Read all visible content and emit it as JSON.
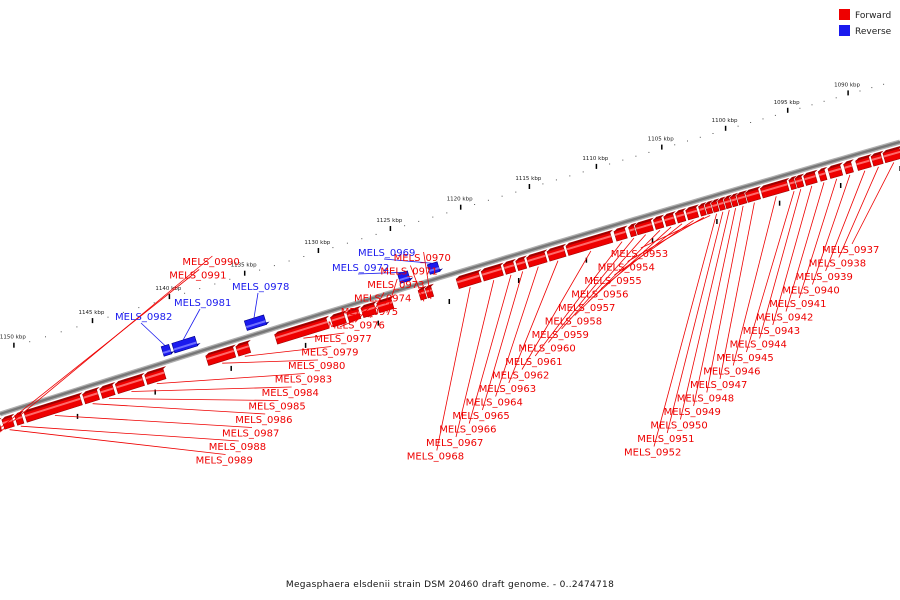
{
  "colors": {
    "forward": "#ee0000",
    "forward_light": "#ff6a6a",
    "forward_dark": "#a00000",
    "reverse": "#1a1aee",
    "reverse_light": "#6f6fff",
    "reverse_dark": "#00008a",
    "backbone": "#777777"
  },
  "legend": [
    {
      "label": "Forward",
      "color_key": "forward"
    },
    {
      "label": "Reverse",
      "color_key": "reverse"
    }
  ],
  "caption": "Megasphaera elsdenii strain DSM 20460 draft genome. - 0..2474718",
  "scale": {
    "start_kbp": 1087,
    "end_kbp": 1152,
    "labels": [
      "1090 kbp",
      "1095 kbp",
      "1100 kbp",
      "1105 kbp",
      "1110 kbp",
      "1115 kbp",
      "1120 kbp",
      "1125 kbp",
      "1130 kbp",
      "1135 kbp",
      "1140 kbp",
      "1145 kbp",
      "1150 kbp"
    ]
  },
  "genes": [
    {
      "name": "MELS_0937",
      "strand": "forward",
      "start_kbp": 1087.2,
      "end_kbp": 1088.6
    },
    {
      "name": "MELS_0938",
      "strand": "forward",
      "start_kbp": 1088.8,
      "end_kbp": 1089.6
    },
    {
      "name": "MELS_0939",
      "strand": "forward",
      "start_kbp": 1089.8,
      "end_kbp": 1090.9
    },
    {
      "name": "MELS_0940",
      "strand": "forward",
      "start_kbp": 1091.3,
      "end_kbp": 1091.9
    },
    {
      "name": "MELS_0941",
      "strand": "forward",
      "start_kbp": 1092.2,
      "end_kbp": 1093.2
    },
    {
      "name": "MELS_0942",
      "strand": "forward",
      "start_kbp": 1093.5,
      "end_kbp": 1094.0
    },
    {
      "name": "MELS_0943",
      "strand": "forward",
      "start_kbp": 1094.3,
      "end_kbp": 1095.2
    },
    {
      "name": "MELS_0944",
      "strand": "forward",
      "start_kbp": 1095.4,
      "end_kbp": 1095.9
    },
    {
      "name": "MELS_0945",
      "strand": "forward",
      "start_kbp": 1096.0,
      "end_kbp": 1096.4
    },
    {
      "name": "MELS_0946",
      "strand": "forward",
      "start_kbp": 1096.6,
      "end_kbp": 1098.7
    },
    {
      "name": "MELS_0947",
      "strand": "forward",
      "start_kbp": 1098.9,
      "end_kbp": 1099.9
    },
    {
      "name": "MELS_0948",
      "strand": "forward",
      "start_kbp": 1100.0,
      "end_kbp": 1100.6
    },
    {
      "name": "MELS_0949",
      "strand": "forward",
      "start_kbp": 1100.7,
      "end_kbp": 1101.1
    },
    {
      "name": "MELS_0950",
      "strand": "forward",
      "start_kbp": 1101.2,
      "end_kbp": 1101.6
    },
    {
      "name": "MELS_0951",
      "strand": "forward",
      "start_kbp": 1101.7,
      "end_kbp": 1102.1
    },
    {
      "name": "MELS_0952",
      "strand": "forward",
      "start_kbp": 1102.2,
      "end_kbp": 1102.6
    },
    {
      "name": "MELS_0953",
      "strand": "forward",
      "start_kbp": 1102.7,
      "end_kbp": 1103.1
    },
    {
      "name": "MELS_0954",
      "strand": "forward",
      "start_kbp": 1103.2,
      "end_kbp": 1103.6
    },
    {
      "name": "MELS_0955",
      "strand": "forward",
      "start_kbp": 1103.8,
      "end_kbp": 1104.6
    },
    {
      "name": "MELS_0956",
      "strand": "forward",
      "start_kbp": 1104.8,
      "end_kbp": 1105.4
    },
    {
      "name": "MELS_0957",
      "strand": "forward",
      "start_kbp": 1105.6,
      "end_kbp": 1106.3
    },
    {
      "name": "MELS_0958",
      "strand": "forward",
      "start_kbp": 1106.5,
      "end_kbp": 1107.1
    },
    {
      "name": "MELS_0959",
      "strand": "forward",
      "start_kbp": 1107.3,
      "end_kbp": 1108.5
    },
    {
      "name": "MELS_0960",
      "strand": "forward",
      "start_kbp": 1108.6,
      "end_kbp": 1109.0
    },
    {
      "name": "MELS_0961",
      "strand": "forward",
      "start_kbp": 1109.3,
      "end_kbp": 1110.1
    },
    {
      "name": "MELS_0962",
      "strand": "forward",
      "start_kbp": 1110.4,
      "end_kbp": 1113.7
    },
    {
      "name": "MELS_0963",
      "strand": "forward",
      "start_kbp": 1113.9,
      "end_kbp": 1115.1
    },
    {
      "name": "MELS_0964",
      "strand": "forward",
      "start_kbp": 1115.3,
      "end_kbp": 1116.6
    },
    {
      "name": "MELS_0965",
      "strand": "forward",
      "start_kbp": 1116.8,
      "end_kbp": 1117.4
    },
    {
      "name": "MELS_0966",
      "strand": "forward",
      "start_kbp": 1117.6,
      "end_kbp": 1118.3
    },
    {
      "name": "MELS_0967",
      "strand": "forward",
      "start_kbp": 1118.5,
      "end_kbp": 1119.9
    },
    {
      "name": "MELS_0968",
      "strand": "forward",
      "start_kbp": 1120.1,
      "end_kbp": 1121.7
    },
    {
      "name": "MELS_0969",
      "strand": "reverse",
      "start_kbp": 1122.6,
      "end_kbp": 1123.3
    },
    {
      "name": "MELS_0970",
      "strand": "forward",
      "start_kbp": 1123.5,
      "end_kbp": 1123.9
    },
    {
      "name": "MELS_0971",
      "strand": "forward",
      "start_kbp": 1124.0,
      "end_kbp": 1124.4
    },
    {
      "name": "MELS_0972",
      "strand": "reverse",
      "start_kbp": 1124.7,
      "end_kbp": 1125.4
    },
    {
      "name": "MELS_0973",
      "strand": "forward",
      "start_kbp": 1126.3,
      "end_kbp": 1127.3
    },
    {
      "name": "MELS_0974",
      "strand": "forward",
      "start_kbp": 1127.5,
      "end_kbp": 1128.4
    },
    {
      "name": "MELS_0975",
      "strand": "forward",
      "start_kbp": 1128.6,
      "end_kbp": 1129.4
    },
    {
      "name": "MELS_0976",
      "strand": "forward",
      "start_kbp": 1129.6,
      "end_kbp": 1130.5
    },
    {
      "name": "MELS_0977",
      "strand": "forward",
      "start_kbp": 1130.8,
      "end_kbp": 1134.3
    },
    {
      "name": "MELS_0978",
      "strand": "reverse",
      "start_kbp": 1134.6,
      "end_kbp": 1135.9
    },
    {
      "name": "MELS_0979",
      "strand": "forward",
      "start_kbp": 1136.1,
      "end_kbp": 1136.9
    },
    {
      "name": "MELS_0980",
      "strand": "forward",
      "start_kbp": 1137.1,
      "end_kbp": 1138.9
    },
    {
      "name": "MELS_0981",
      "strand": "reverse",
      "start_kbp": 1139.2,
      "end_kbp": 1140.7
    },
    {
      "name": "MELS_0982",
      "strand": "reverse",
      "start_kbp": 1140.9,
      "end_kbp": 1141.4
    },
    {
      "name": "MELS_0983",
      "strand": "forward",
      "start_kbp": 1141.7,
      "end_kbp": 1142.9
    },
    {
      "name": "MELS_0984",
      "strand": "forward",
      "start_kbp": 1143.1,
      "end_kbp": 1144.8
    },
    {
      "name": "MELS_0985",
      "strand": "forward",
      "start_kbp": 1145.0,
      "end_kbp": 1145.8
    },
    {
      "name": "MELS_0986",
      "strand": "forward",
      "start_kbp": 1146.0,
      "end_kbp": 1146.9
    },
    {
      "name": "MELS_0987",
      "strand": "forward",
      "start_kbp": 1147.1,
      "end_kbp": 1150.6
    },
    {
      "name": "MELS_0988",
      "strand": "forward",
      "start_kbp": 1150.8,
      "end_kbp": 1151.2
    },
    {
      "name": "MELS_0989",
      "strand": "forward",
      "start_kbp": 1151.4,
      "end_kbp": 1152.0
    },
    {
      "name": "MELS_0990",
      "strand": "forward",
      "start_kbp": 1152.2,
      "end_kbp": 1152.6
    },
    {
      "name": "MELS_0991",
      "strand": "forward",
      "start_kbp": 1152.7,
      "end_kbp": 1153.1
    }
  ]
}
